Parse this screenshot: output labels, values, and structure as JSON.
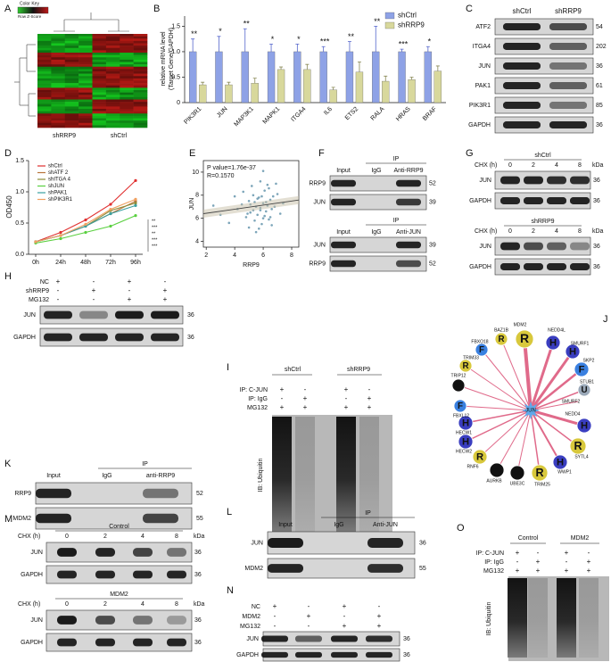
{
  "panel_labels": [
    "A",
    "B",
    "C",
    "D",
    "E",
    "F",
    "G",
    "H",
    "I",
    "J",
    "K",
    "L",
    "M",
    "N",
    "O"
  ],
  "A": {
    "color_key": "Color Key",
    "z_label": "Row Z-Score",
    "groups": [
      "shRRP9",
      "shCtrl"
    ]
  },
  "chart_data": [
    {
      "type": "bar",
      "ylabel": [
        "relative mRNA level",
        "(Target Gene/GAPDH)"
      ],
      "categories": [
        "PIK3R1",
        "JUN",
        "MAP3K1",
        "MAPK1",
        "ITGA4",
        "IL6",
        "ETS2",
        "RALA",
        "HRAS",
        "BRAF"
      ],
      "series": [
        {
          "name": "shCtrl",
          "color": "#8ea2e6",
          "values": [
            1,
            1,
            1,
            1,
            1,
            1,
            1,
            1,
            1,
            1
          ],
          "errors": [
            0.25,
            0.3,
            0.45,
            0.15,
            0.15,
            0.1,
            0.2,
            0.5,
            0.05,
            0.1
          ]
        },
        {
          "name": "shRRP9",
          "color": "#d8d89c",
          "values": [
            0.35,
            0.35,
            0.38,
            0.65,
            0.65,
            0.25,
            0.6,
            0.42,
            0.45,
            0.62
          ],
          "errors": [
            0.05,
            0.05,
            0.1,
            0.05,
            0.1,
            0.05,
            0.2,
            0.1,
            0.05,
            0.1
          ]
        }
      ],
      "annotations": [
        "**",
        "*",
        "**",
        "*",
        "*",
        "***",
        "**",
        "**",
        "***",
        "*"
      ],
      "ylim": [
        0,
        1.7
      ],
      "yticks": [
        0,
        0.5,
        {
          "value": 1,
          "label": "1.0"
        },
        1.5
      ]
    },
    {
      "type": "line",
      "ylabel": "OD450",
      "categories": [
        "0h",
        "24h",
        "48h",
        "72h",
        "96h"
      ],
      "series": [
        {
          "name": "shCtrl",
          "color": "#e03030",
          "values": [
            0.2,
            0.35,
            0.55,
            0.8,
            1.18
          ]
        },
        {
          "name": "shATF 2",
          "color": "#b8733a",
          "values": [
            0.2,
            0.3,
            0.45,
            0.65,
            0.85
          ]
        },
        {
          "name": "shITGA 4",
          "color": "#8c8c3a",
          "values": [
            0.2,
            0.3,
            0.45,
            0.7,
            0.82
          ]
        },
        {
          "name": "shJUN",
          "color": "#5ad040",
          "values": [
            0.18,
            0.25,
            0.35,
            0.45,
            0.62
          ]
        },
        {
          "name": "shPAK1",
          "color": "#3aa0a0",
          "values": [
            0.2,
            0.3,
            0.45,
            0.65,
            0.78
          ]
        },
        {
          "name": "shPIK3R1",
          "color": "#f0a060",
          "values": [
            0.2,
            0.3,
            0.48,
            0.72,
            0.88
          ]
        }
      ],
      "annotations": [
        "**",
        "***",
        "**",
        "***",
        "***"
      ],
      "ylim": [
        0,
        1.5
      ],
      "yticks": [
        {
          "value": 0,
          "label": "0.0"
        },
        0.5,
        {
          "value": 1,
          "label": "1.0"
        },
        1.5
      ]
    },
    {
      "type": "scatter",
      "annotations": [
        "P value=1.76e-37",
        "R=0.1570"
      ],
      "xlabel": "RRP9",
      "ylabel": "JUN",
      "color": "#5b8fa8",
      "x": [
        4.2,
        4.5,
        4.8,
        5.0,
        5.1,
        5.3,
        5.4,
        5.5,
        5.6,
        5.7,
        5.8,
        5.9,
        6.0,
        6.1,
        6.2,
        6.3,
        6.4,
        6.5,
        6.6,
        6.7,
        5.2,
        5.5,
        5.8,
        6.0,
        6.2,
        6.4,
        5.0,
        5.6,
        6.1,
        6.8,
        7.0,
        7.2,
        4.0,
        3.6,
        3.0,
        2.5,
        4.6,
        5.3,
        5.9,
        6.5,
        7.4,
        6.9,
        5.7,
        6.3,
        5.4,
        4.9,
        6.6,
        6.0,
        5.1,
        5.8
      ],
      "values": [
        6.8,
        7.2,
        6.1,
        7.5,
        6.5,
        8.0,
        5.8,
        7.0,
        6.3,
        7.8,
        6.9,
        5.5,
        7.3,
        8.4,
        6.6,
        7.1,
        5.9,
        7.6,
        6.8,
        7.9,
        8.8,
        4.8,
        9.2,
        6.0,
        7.4,
        8.6,
        5.2,
        7.7,
        6.2,
        7.0,
        8.1,
        6.4,
        7.9,
        5.6,
        6.3,
        7.1,
        8.3,
        6.7,
        7.9,
        6.1,
        7.3,
        9.0,
        5.1,
        8.9,
        7.4,
        6.4,
        5.4,
        10.1,
        7.2,
        6.7
      ],
      "xlim": [
        1.8,
        8.5
      ],
      "ylim": [
        3.5,
        11
      ],
      "xticks": [
        2,
        4,
        6,
        8
      ],
      "yticks": [
        4,
        6,
        8,
        10
      ]
    }
  ],
  "C": {
    "headers": [
      "shCtrl",
      "shRRP9"
    ],
    "rows": [
      {
        "name": "ATF2",
        "kda": 54
      },
      {
        "name": "ITGA4",
        "kda": 202
      },
      {
        "name": "JUN",
        "kda": 36
      },
      {
        "name": "PAK1",
        "kda": 61
      },
      {
        "name": "PIK3R1",
        "kda": 85
      },
      {
        "name": "GAPDH",
        "kda": 36
      }
    ]
  },
  "F": {
    "blots": [
      {
        "ip": "IP",
        "lanes": [
          "Input",
          "IgG",
          "Anti-RRP9"
        ],
        "rows": [
          {
            "name": "RRP9",
            "kda": 52
          },
          {
            "name": "JUN",
            "kda": 39
          }
        ]
      },
      {
        "ip": "IP",
        "lanes": [
          "Input",
          "IgG",
          "Anti-JUN"
        ],
        "rows": [
          {
            "name": "JUN",
            "kda": 39
          },
          {
            "name": "RRP9",
            "kda": 52
          }
        ]
      }
    ]
  },
  "G": {
    "blots": [
      {
        "title": "shCtrl",
        "treatment": "CHX (h)",
        "times": [
          0,
          2,
          4,
          8
        ],
        "unit": "kDa",
        "rows": [
          {
            "name": "JUN",
            "kda": 36
          },
          {
            "name": "GAPDH",
            "kda": 36
          }
        ]
      },
      {
        "title": "shRRP9",
        "treatment": "CHX (h)",
        "times": [
          0,
          2,
          4,
          8
        ],
        "unit": "kDa",
        "rows": [
          {
            "name": "JUN",
            "kda": 36
          },
          {
            "name": "GAPDH",
            "kda": 36
          }
        ]
      }
    ]
  },
  "H": {
    "conditions": [
      {
        "name": "NC",
        "signs": [
          "+",
          "-",
          "+",
          "-"
        ]
      },
      {
        "name": "shRRP9",
        "signs": [
          "-",
          "+",
          "-",
          "+"
        ]
      },
      {
        "name": "MG132",
        "signs": [
          "-",
          "-",
          "+",
          "+"
        ]
      }
    ],
    "rows": [
      {
        "name": "JUN",
        "kda": 36
      },
      {
        "name": "GAPDH",
        "kda": 36
      }
    ]
  },
  "I": {
    "groups": [
      "shCtrl",
      "shRRP9"
    ],
    "conditions": [
      {
        "name": "IP: C-JUN",
        "signs": [
          "+",
          "-",
          "+",
          "-"
        ]
      },
      {
        "name": "IP: IgG",
        "signs": [
          "-",
          "+",
          "-",
          "+"
        ]
      },
      {
        "name": "MG132",
        "signs": [
          "+",
          "+",
          "+",
          "+"
        ]
      }
    ],
    "ib": "IB: Ubiquitin"
  },
  "J": {
    "center": "JUN",
    "nodes": [
      {
        "letter": "R",
        "label": "MDM2"
      },
      {
        "letter": "H",
        "label": "NEDD4L"
      },
      {
        "letter": "H",
        "label": "SMURF1"
      },
      {
        "letter": "F",
        "label": "SKP2"
      },
      {
        "letter": "U",
        "label": "STUB1"
      },
      {
        "label": "SMURF2"
      },
      {
        "letter": "H",
        "label": "NEDD4"
      },
      {
        "letter": "R",
        "label": "SYTL4"
      },
      {
        "letter": "H",
        "label": "WWP1"
      },
      {
        "letter": "R",
        "label": "TRIM25"
      },
      {
        "letter": "SO",
        "label": "UBE3C"
      },
      {
        "letter": "SO",
        "label": "AURKB"
      },
      {
        "letter": "R",
        "label": "RNF6"
      },
      {
        "letter": "H",
        "label": "HECW2"
      },
      {
        "letter": "H",
        "label": "HECW1"
      },
      {
        "letter": "F",
        "label": "FBXL12"
      },
      {
        "letter": "SO",
        "label": "TRIP12"
      },
      {
        "letter": "R",
        "label": "TRIM33"
      },
      {
        "letter": "F",
        "label": "FBXO18"
      },
      {
        "letter": "R",
        "label": "BAZ1B"
      }
    ]
  },
  "K": {
    "ip": "IP",
    "lanes": [
      "Input",
      "IgG",
      "anti-RRP9"
    ],
    "rows": [
      {
        "name": "RRP9",
        "kda": 52
      },
      {
        "name": "MDM2",
        "kda": 55
      }
    ]
  },
  "L": {
    "ip": "IP",
    "lanes": [
      "Input",
      "IgG",
      "Anti-JUN"
    ],
    "rows": [
      {
        "name": "JUN",
        "kda": 36
      },
      {
        "name": "MDM2",
        "kda": 55
      }
    ]
  },
  "M": {
    "blots": [
      {
        "title": "Control",
        "treatment": "CHX (h)",
        "times": [
          0,
          2,
          4,
          8
        ],
        "unit": "kDa",
        "rows": [
          {
            "name": "JUN",
            "kda": 36
          },
          {
            "name": "GAPDH",
            "kda": 36
          }
        ]
      },
      {
        "title": "MDM2",
        "treatment": "CHX (h)",
        "times": [
          0,
          2,
          4,
          8
        ],
        "unit": "kDa",
        "rows": [
          {
            "name": "JUN",
            "kda": 36
          },
          {
            "name": "GAPDH",
            "kda": 36
          }
        ]
      }
    ]
  },
  "N": {
    "conditions": [
      {
        "name": "NC",
        "signs": [
          "+",
          "-",
          "+",
          "-"
        ]
      },
      {
        "name": "MDM2",
        "signs": [
          "-",
          "+",
          "-",
          "+"
        ]
      },
      {
        "name": "MG132",
        "signs": [
          "-",
          "-",
          "+",
          "+"
        ]
      }
    ],
    "rows": [
      {
        "name": "JUN",
        "kda": 36
      },
      {
        "name": "GAPDH",
        "kda": 36
      }
    ]
  },
  "O": {
    "groups": [
      "Control",
      "MDM2"
    ],
    "conditions": [
      {
        "name": "IP: C-JUN",
        "signs": [
          "+",
          "-",
          "+",
          "-"
        ]
      },
      {
        "name": "IP: IgG",
        "signs": [
          "-",
          "+",
          "-",
          "+"
        ]
      },
      {
        "name": "MG132",
        "signs": [
          "+",
          "+",
          "+",
          "+"
        ]
      }
    ],
    "ib": "IB: Ubiquitin"
  }
}
